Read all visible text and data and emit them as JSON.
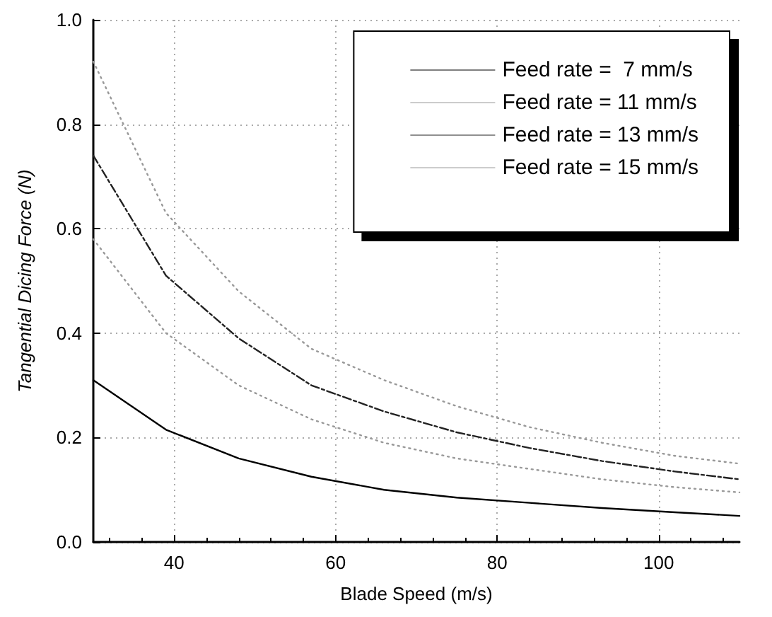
{
  "chart_data": {
    "type": "line",
    "xlabel": "Blade Speed (m/s)",
    "ylabel": "Tangential Dicing Force (N)",
    "x": [
      30,
      39,
      48,
      57,
      66,
      75,
      84,
      93,
      102,
      110
    ],
    "series": [
      {
        "name": "Feed rate =  7 mm/s",
        "color": "#000000",
        "line_style": "solid",
        "values": [
          0.31,
          0.215,
          0.16,
          0.125,
          0.1,
          0.085,
          0.075,
          0.065,
          0.057,
          0.05
        ]
      },
      {
        "name": "Feed rate = 11 mm/s",
        "color": "#999999",
        "line_style": "dotted",
        "values": [
          0.58,
          0.4,
          0.3,
          0.235,
          0.19,
          0.16,
          0.14,
          0.12,
          0.105,
          0.095
        ]
      },
      {
        "name": "Feed rate = 13 mm/s",
        "color": "#222222",
        "line_style": "dashed",
        "values": [
          0.74,
          0.51,
          0.39,
          0.3,
          0.25,
          0.21,
          0.18,
          0.155,
          0.135,
          0.12
        ]
      },
      {
        "name": "Feed rate = 15 mm/s",
        "color": "#999999",
        "line_style": "dotted",
        "values": [
          0.92,
          0.63,
          0.48,
          0.37,
          0.31,
          0.26,
          0.22,
          0.19,
          0.165,
          0.15
        ]
      }
    ],
    "xlim": [
      30,
      110
    ],
    "xticks": [
      40,
      60,
      80,
      100
    ],
    "ylim": [
      0,
      1
    ],
    "yticks": [
      {
        "value": 0,
        "label": "0.0"
      },
      0.2,
      0.4,
      0.6,
      0.8,
      {
        "value": 1,
        "label": "1.0"
      }
    ],
    "grid": true,
    "legend": "top right",
    "marker": "none"
  }
}
